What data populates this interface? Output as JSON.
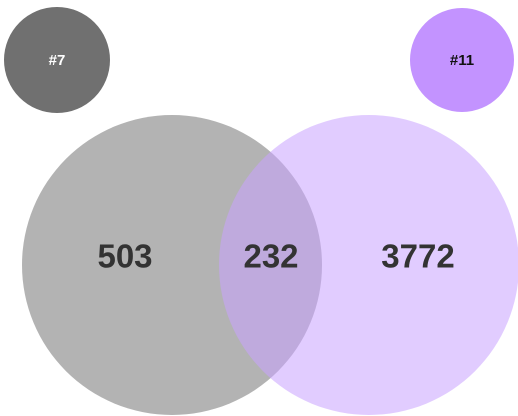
{
  "sets": [
    {
      "label": "#7",
      "color": "#b3b3b3",
      "badge_color": "#707070",
      "label_color": "#ffffff",
      "only": 503
    },
    {
      "label": "#11",
      "color": "#c8a2ff",
      "badge_color": "#c393ff",
      "label_color": "#111111",
      "only": 3772
    }
  ],
  "intersection": 232
}
